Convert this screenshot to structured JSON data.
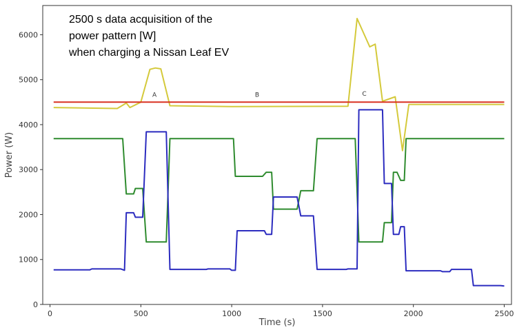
{
  "chart_data": {
    "type": "line",
    "title_lines": [
      "2500 s data acquisition of the",
      "power pattern [W]",
      "when charging a Nissan Leaf EV"
    ],
    "xlabel": "Time (s)",
    "ylabel": "Power (W)",
    "xlim": [
      -40,
      2540
    ],
    "ylim": [
      0,
      6650
    ],
    "xticks": [
      0,
      500,
      1000,
      1500,
      2000,
      2500
    ],
    "yticks": [
      0,
      1000,
      2000,
      3000,
      4000,
      5000,
      6000
    ],
    "grid": false,
    "annotations": [
      {
        "text": "A",
        "x": 575,
        "y": 4620
      },
      {
        "text": "B",
        "x": 1140,
        "y": 4620
      },
      {
        "text": "C",
        "x": 1730,
        "y": 4640
      }
    ],
    "series": [
      {
        "color": "#d4c93a",
        "points": [
          [
            20,
            4380
          ],
          [
            370,
            4360
          ],
          [
            420,
            4480
          ],
          [
            440,
            4380
          ],
          [
            500,
            4500
          ],
          [
            550,
            5230
          ],
          [
            580,
            5260
          ],
          [
            610,
            5240
          ],
          [
            660,
            4420
          ],
          [
            1000,
            4400
          ],
          [
            1640,
            4410
          ],
          [
            1690,
            6360
          ],
          [
            1760,
            5730
          ],
          [
            1790,
            5790
          ],
          [
            1830,
            4520
          ],
          [
            1900,
            4620
          ],
          [
            1940,
            3420
          ],
          [
            1975,
            4450
          ],
          [
            2500,
            4450
          ]
        ]
      },
      {
        "color": "#d93020",
        "points": [
          [
            20,
            4500
          ],
          [
            2500,
            4500
          ]
        ]
      },
      {
        "color": "#2e8b2e",
        "points": [
          [
            20,
            3690
          ],
          [
            400,
            3690
          ],
          [
            420,
            2460
          ],
          [
            460,
            2460
          ],
          [
            470,
            2580
          ],
          [
            510,
            2580
          ],
          [
            530,
            1390
          ],
          [
            640,
            1390
          ],
          [
            660,
            3690
          ],
          [
            1010,
            3690
          ],
          [
            1020,
            2850
          ],
          [
            1170,
            2850
          ],
          [
            1190,
            2940
          ],
          [
            1220,
            2940
          ],
          [
            1230,
            2120
          ],
          [
            1360,
            2120
          ],
          [
            1380,
            2530
          ],
          [
            1450,
            2530
          ],
          [
            1470,
            3690
          ],
          [
            1680,
            3690
          ],
          [
            1700,
            1390
          ],
          [
            1830,
            1390
          ],
          [
            1840,
            1820
          ],
          [
            1880,
            1820
          ],
          [
            1890,
            2940
          ],
          [
            1910,
            2940
          ],
          [
            1930,
            2760
          ],
          [
            1950,
            2760
          ],
          [
            1960,
            3690
          ],
          [
            2500,
            3690
          ]
        ]
      },
      {
        "color": "#2b2bbf",
        "points": [
          [
            20,
            770
          ],
          [
            220,
            770
          ],
          [
            230,
            790
          ],
          [
            390,
            790
          ],
          [
            410,
            760
          ],
          [
            420,
            2040
          ],
          [
            460,
            2040
          ],
          [
            470,
            1940
          ],
          [
            510,
            1940
          ],
          [
            530,
            3840
          ],
          [
            640,
            3840
          ],
          [
            660,
            780
          ],
          [
            860,
            780
          ],
          [
            870,
            790
          ],
          [
            990,
            790
          ],
          [
            1000,
            760
          ],
          [
            1020,
            760
          ],
          [
            1030,
            1640
          ],
          [
            1180,
            1640
          ],
          [
            1190,
            1560
          ],
          [
            1220,
            1560
          ],
          [
            1230,
            2390
          ],
          [
            1360,
            2390
          ],
          [
            1380,
            1970
          ],
          [
            1450,
            1970
          ],
          [
            1470,
            780
          ],
          [
            1630,
            780
          ],
          [
            1640,
            790
          ],
          [
            1690,
            790
          ],
          [
            1700,
            4330
          ],
          [
            1830,
            4330
          ],
          [
            1840,
            2690
          ],
          [
            1880,
            2690
          ],
          [
            1890,
            1560
          ],
          [
            1920,
            1560
          ],
          [
            1930,
            1730
          ],
          [
            1950,
            1730
          ],
          [
            1960,
            750
          ],
          [
            2150,
            750
          ],
          [
            2160,
            730
          ],
          [
            2200,
            730
          ],
          [
            2210,
            780
          ],
          [
            2320,
            780
          ],
          [
            2330,
            420
          ],
          [
            2480,
            420
          ],
          [
            2500,
            410
          ]
        ]
      }
    ]
  }
}
